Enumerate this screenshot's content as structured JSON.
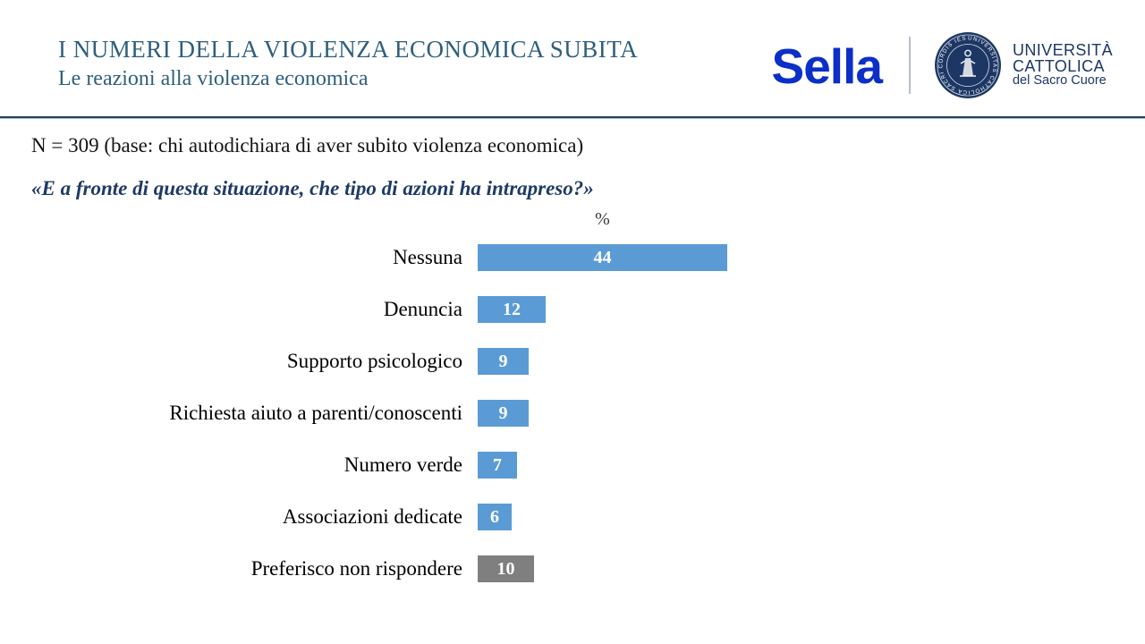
{
  "header": {
    "title": "I NUMERI DELLA VIOLENZA ECONOMICA SUBITA",
    "subtitle": "Le reazioni alla violenza economica",
    "sella_logo_text": "Sella",
    "cattolica": {
      "line1": "UNIVERSITÀ",
      "line2": "CATTOLICA",
      "line3": "del Sacro Cuore",
      "seal_ring_text": "UNIVERSITAS CATHOLICA SACRI CORDIS IESU · MEDIOLANI ·"
    }
  },
  "body": {
    "base_note": "N = 309 (base: chi autodichiara di aver subito violenza economica)",
    "question": "«E a fronte di questa situazione, che tipo di azioni ha intrapreso?»"
  },
  "chart_data": {
    "type": "bar",
    "orientation": "horizontal",
    "title": "",
    "unit_label": "%",
    "categories": [
      "Nessuna",
      "Denuncia",
      "Supporto psicologico",
      "Richiesta aiuto a parenti/conoscenti",
      "Numero verde",
      "Associazioni dedicate",
      "Preferisco non rispondere"
    ],
    "values": [
      44,
      12,
      9,
      9,
      7,
      6,
      10
    ],
    "bar_colors": [
      "#5B9BD5",
      "#5B9BD5",
      "#5B9BD5",
      "#5B9BD5",
      "#5B9BD5",
      "#5B9BD5",
      "#7F7F7F"
    ],
    "value_labels_inside": true,
    "xlim": [
      0,
      44
    ],
    "grid": false,
    "legend": false
  },
  "colors": {
    "accent_title": "#2E5F7E",
    "question_navy": "#1E3A66",
    "bar_blue": "#5B9BD5",
    "bar_gray": "#7F7F7F",
    "sella_blue": "#0B2FC8",
    "cattolica_navy": "#1D3765",
    "rule_dark": "#24405C",
    "rule_light": "#A8C6E0"
  }
}
